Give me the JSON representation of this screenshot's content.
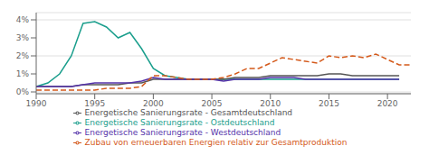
{
  "chart_data": {
    "type": "line",
    "x": [
      1990,
      1991,
      1992,
      1993,
      1994,
      1995,
      1996,
      1997,
      1998,
      1999,
      2000,
      2001,
      2002,
      2003,
      2004,
      2005,
      2006,
      2007,
      2008,
      2009,
      2010,
      2011,
      2012,
      2013,
      2014,
      2015,
      2016,
      2017,
      2018,
      2019,
      2020,
      2021,
      2022
    ],
    "xlim": [
      1990,
      2022
    ],
    "xticks": [
      1990,
      1995,
      2000,
      2005,
      2010,
      2015,
      2020
    ],
    "ylim": [
      -0.001,
      0.044
    ],
    "yticks": [
      {
        "value": 0,
        "label": "0%"
      },
      {
        "value": 0.01,
        "label": "1%"
      },
      {
        "value": 0.02,
        "label": "2%"
      },
      {
        "value": 0.03,
        "label": "3%"
      },
      {
        "value": 0.04,
        "label": "4%"
      }
    ],
    "grid": true,
    "legend": "bottom",
    "series": [
      {
        "name": "Energetische Sanierungsrate - Ostdeutschland",
        "color": "#1a9e8c",
        "line_style": "solid",
        "values": [
          0.003,
          0.005,
          0.01,
          0.02,
          0.038,
          0.039,
          0.036,
          0.03,
          0.033,
          0.024,
          0.013,
          0.009,
          0.008,
          0.007,
          0.007,
          0.007,
          0.007,
          0.007,
          0.007,
          0.007,
          0.007,
          0.007,
          0.007,
          0.007,
          0.007,
          0.007,
          0.007,
          0.007,
          0.007,
          0.007,
          0.007,
          0.007,
          null
        ]
      },
      {
        "name": "Energetische Sanierungsrate - Gesamtdeutschland",
        "color": "#555555",
        "line_style": "solid",
        "values": [
          0.003,
          0.003,
          0.003,
          0.003,
          0.004,
          0.004,
          0.004,
          0.004,
          0.005,
          0.005,
          0.007,
          0.007,
          0.007,
          0.007,
          0.007,
          0.007,
          0.007,
          0.008,
          0.008,
          0.008,
          0.009,
          0.009,
          0.009,
          0.009,
          0.009,
          0.01,
          0.01,
          0.009,
          0.009,
          0.009,
          0.009,
          0.009,
          null
        ]
      },
      {
        "name": "Energetische Sanierungsrate - Westdeutschland",
        "color": "#5533aa",
        "line_style": "solid",
        "values": [
          0.003,
          0.003,
          0.003,
          0.003,
          0.004,
          0.005,
          0.005,
          0.005,
          0.005,
          0.006,
          0.008,
          0.007,
          0.007,
          0.007,
          0.007,
          0.007,
          0.006,
          0.007,
          0.007,
          0.007,
          0.008,
          0.008,
          0.008,
          0.007,
          0.007,
          0.007,
          0.007,
          0.007,
          0.007,
          0.007,
          0.007,
          0.007,
          null
        ]
      },
      {
        "name": "Zubau von erneuerbaren Energien relativ zur Gesamtproduktion",
        "color": "#d4591a",
        "line_style": "dashed",
        "values": [
          0.001,
          0.001,
          0.001,
          0.001,
          0.001,
          0.001,
          0.002,
          0.002,
          0.002,
          0.003,
          0.009,
          0.009,
          0.008,
          0.007,
          0.007,
          0.007,
          0.008,
          0.01,
          0.013,
          0.013,
          0.016,
          0.019,
          0.018,
          0.017,
          0.016,
          0.02,
          0.019,
          0.02,
          0.019,
          0.021,
          0.018,
          0.015,
          0.015
        ]
      }
    ]
  }
}
